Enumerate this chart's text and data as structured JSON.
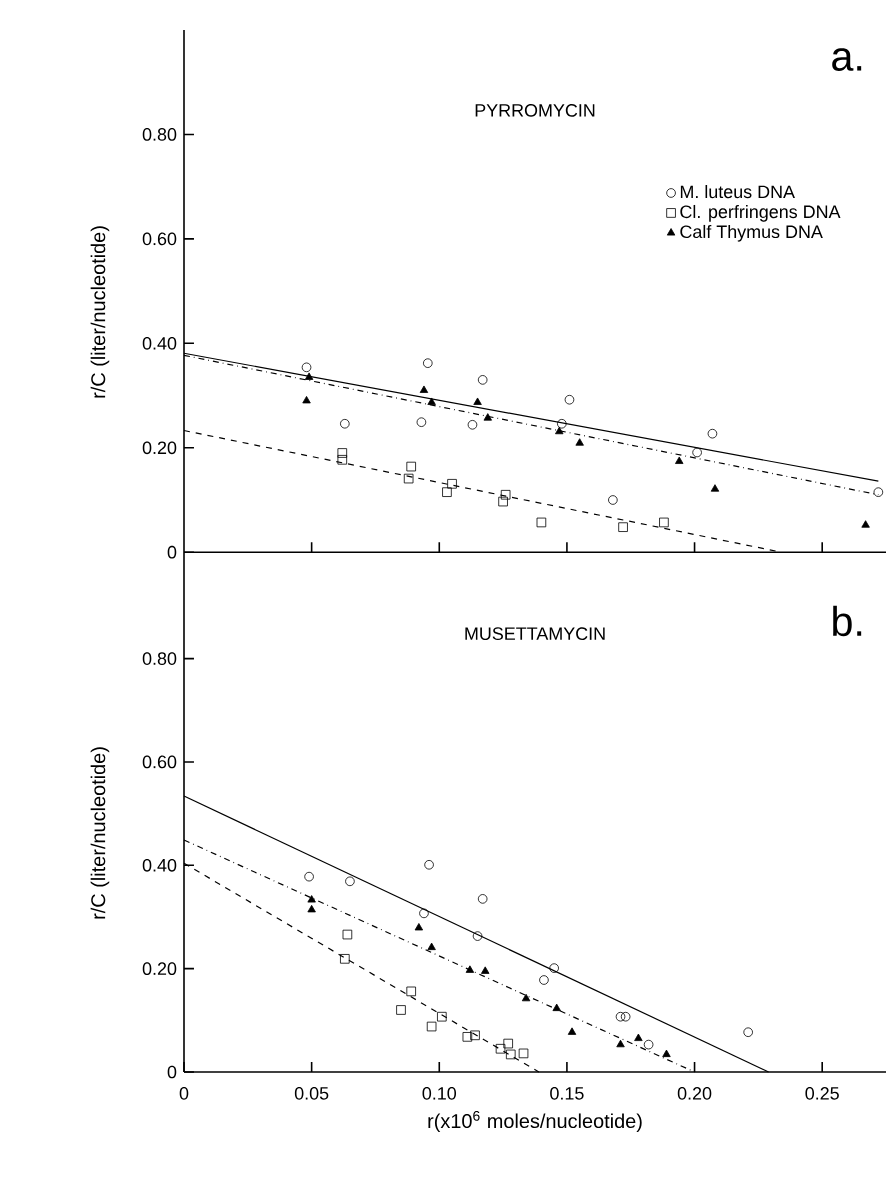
{
  "chart_data": [
    {
      "type": "scatter",
      "title": "PYRROMYCIN",
      "annotations": [
        "a."
      ],
      "ylabel": "r/C (liter/nucleotide)",
      "xlim": [
        0,
        0.275
      ],
      "ylim": [
        -0.08,
        1.0
      ],
      "xticks": [
        {
          "value": 0.05,
          "label": null
        },
        {
          "value": 0.1,
          "label": null
        },
        {
          "value": 0.15,
          "label": null
        },
        {
          "value": 0.2,
          "label": null
        },
        {
          "value": 0.25,
          "label": null
        }
      ],
      "yticks": [
        0,
        {
          "value": 0.2,
          "label": "0.20"
        },
        {
          "value": 0.4,
          "label": "0.40"
        },
        {
          "value": 0.6,
          "label": "0.60"
        },
        {
          "value": 0.8,
          "label": "0.80"
        }
      ],
      "tick_labels": "y",
      "legend": "top right",
      "series": [
        {
          "name": "M. luteus DNA",
          "color": "#000000",
          "marker": "circle",
          "x": [
            0.048,
            0.063,
            0.0955,
            0.093,
            0.117,
            0.113,
            0.148,
            0.151,
            0.168,
            0.201,
            0.207,
            0.272
          ],
          "values": [
            0.354,
            0.246,
            0.362,
            0.249,
            0.33,
            0.244,
            0.246,
            0.292,
            0.1,
            0.191,
            0.227,
            0.115
          ]
        },
        {
          "name": "Cl. perfringens DNA",
          "color": "#000000",
          "marker": "square",
          "x": [
            0.062,
            0.062,
            0.089,
            0.088,
            0.105,
            0.103,
            0.126,
            0.125,
            0.14,
            0.172,
            0.188
          ],
          "values": [
            0.19,
            0.177,
            0.164,
            0.141,
            0.131,
            0.115,
            0.11,
            0.097,
            0.057,
            0.048,
            0.057
          ]
        },
        {
          "name": "Calf Thymus DNA",
          "color": "#000000",
          "marker": "triangle",
          "x": [
            0.048,
            0.049,
            0.094,
            0.097,
            0.115,
            0.119,
            0.147,
            0.155,
            0.194,
            0.208,
            0.267
          ],
          "values": [
            0.29,
            0.335,
            0.31,
            0.287,
            0.287,
            0.257,
            0.231,
            0.209,
            0.174,
            0.121,
            0.052
          ]
        },
        {
          "type": "line",
          "color": "#000000",
          "line_style": "solid",
          "x": [
            0,
            0.272
          ],
          "values": [
            0.381,
            0.136
          ]
        },
        {
          "type": "line",
          "color": "#000000",
          "line_style": "dashdot",
          "x": [
            0,
            0.272
          ],
          "values": [
            0.377,
            0.11
          ]
        },
        {
          "type": "line",
          "color": "#000000",
          "line_style": "dashed",
          "x": [
            0,
            0.234
          ],
          "values": [
            0.233,
            0
          ]
        }
      ]
    },
    {
      "type": "scatter",
      "title": "MUSETTAMYCIN",
      "annotations": [
        "b."
      ],
      "ylabel": "r/C (liter/nucleotide)",
      "xlabel": "r(x10$^{6}$ moles/nucleotide)",
      "xlim": [
        0,
        0.275
      ],
      "ylim": [
        0,
        0.925
      ],
      "xticks": [
        0,
        0.05,
        {
          "value": 0.1,
          "label": "0.10"
        },
        0.15,
        {
          "value": 0.2,
          "label": "0.20"
        },
        0.25
      ],
      "yticks": [
        0,
        {
          "value": 0.2,
          "label": "0.20"
        },
        {
          "value": 0.4,
          "label": "0.40"
        },
        {
          "value": 0.6,
          "label": "0.60"
        },
        {
          "value": 0.8,
          "label": "0.80"
        }
      ],
      "series": [
        {
          "color": "#000000",
          "marker": "circle",
          "x": [
            0.049,
            0.065,
            0.096,
            0.094,
            0.115,
            0.117,
            0.145,
            0.141,
            0.171,
            0.173,
            0.182,
            0.221
          ],
          "values": [
            0.378,
            0.369,
            0.401,
            0.307,
            0.263,
            0.335,
            0.201,
            0.178,
            0.107,
            0.107,
            0.053,
            0.077
          ]
        },
        {
          "color": "#000000",
          "marker": "square",
          "x": [
            0.064,
            0.063,
            0.089,
            0.085,
            0.097,
            0.101,
            0.111,
            0.114,
            0.124,
            0.127,
            0.128,
            0.133
          ],
          "values": [
            0.266,
            0.219,
            0.156,
            0.12,
            0.088,
            0.107,
            0.068,
            0.071,
            0.045,
            0.055,
            0.034,
            0.036
          ]
        },
        {
          "color": "#000000",
          "marker": "triangle",
          "x": [
            0.05,
            0.05,
            0.092,
            0.097,
            0.112,
            0.118,
            0.134,
            0.146,
            0.152,
            0.171,
            0.178,
            0.189
          ],
          "values": [
            0.333,
            0.314,
            0.279,
            0.241,
            0.197,
            0.195,
            0.142,
            0.123,
            0.077,
            0.053,
            0.065,
            0.034
          ]
        },
        {
          "type": "line",
          "color": "#000000",
          "line_style": "solid",
          "x": [
            0,
            0.229
          ],
          "values": [
            0.534,
            0
          ]
        },
        {
          "type": "line",
          "color": "#000000",
          "line_style": "dashdot",
          "x": [
            0,
            0.2
          ],
          "values": [
            0.449,
            0
          ]
        },
        {
          "type": "line",
          "color": "#000000",
          "line_style": "dashed",
          "x": [
            0,
            0.139
          ],
          "values": [
            0.404,
            0
          ]
        }
      ]
    }
  ]
}
